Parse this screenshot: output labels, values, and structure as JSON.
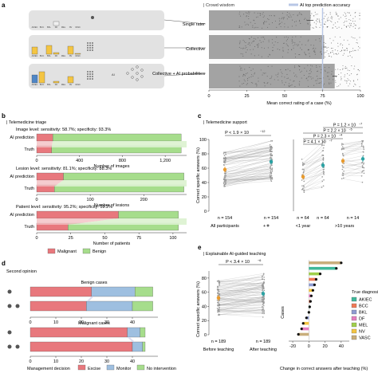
{
  "panel_letters": [
    "a",
    "b",
    "c",
    "d",
    "e"
  ],
  "panel_a": {
    "title": "| Crowd wisdom",
    "legend": "AI top prediction accuracy",
    "row_labels": [
      "Single rater",
      "Collective",
      "Collective + AI probabilities"
    ],
    "diagnosis_labels": [
      "AKIEC",
      "BCC",
      "BKL",
      "DF",
      "MEL",
      "NV",
      "VASC"
    ],
    "ai_text": "AI",
    "xlabel": "Mean correct rating of a case (%)"
  },
  "panel_b": {
    "title": "| Telemedicine triage",
    "row_labels": [
      "AI prediction",
      "Truth"
    ],
    "charts": [
      {
        "subtitle": "Image level: sensitivity: 58.7%; specificity: 93.3%",
        "xlabel": "Number of images",
        "ticks": [
          "0",
          "400",
          "800",
          "1,200"
        ]
      },
      {
        "subtitle": "Lesion level: sensitivity: 81.1%; specificity: 88.3%",
        "xlabel": "Number of lesions",
        "ticks": [
          "0",
          "100",
          "200"
        ]
      },
      {
        "subtitle": "Patient level: sensitivity: 95.2%; specificity: 59.2%",
        "xlabel": "Number of patients",
        "ticks": [
          "0",
          "25",
          "50",
          "75",
          "100"
        ]
      }
    ],
    "legend": [
      "Malignant",
      "Benign"
    ]
  },
  "panel_c": {
    "title": "| Telemedicine support",
    "ylabel": "Correct specific answers (%)",
    "left_p": "P < 1.9 × 10",
    "left_p_exp": "−12",
    "left_n": [
      "n = 154",
      "n = 154"
    ],
    "left_xlabel": "All participants",
    "right_p": [
      "P = 1.2 × 10",
      "P = 2.2 × 10",
      "P = 2.3 × 10",
      "P = 4.1 × 10"
    ],
    "right_p_exp": [
      "−7",
      "−5",
      "−4",
      "−7"
    ],
    "right_n": [
      "n = 64",
      "n = 64",
      "n = 14"
    ],
    "right_xlabels": [
      "<1 year",
      ">10 years"
    ]
  },
  "panel_d": {
    "title": "Second opinion",
    "subtitles": [
      "Benign cases",
      "Malignant cases"
    ],
    "legend_title": "Management decision",
    "legend": [
      "Excise",
      "Monitor",
      "No intervention"
    ]
  },
  "panel_e": {
    "title": "| Explainable AI-guided teaching",
    "p_text": "P < 3.4 × 10",
    "p_exp": "−6",
    "ylabel": "Correct specific answers (%)",
    "n_labels": [
      "n = 189",
      "n = 189"
    ],
    "xlabels": [
      "Before teaching",
      "After teaching"
    ],
    "right_ylabel": "Cases",
    "right_xlabel": "Change in correct answers after teaching (%)",
    "legend_title": "True diagnosis",
    "legend": [
      "AKIEC",
      "BCC",
      "BKL",
      "DF",
      "MEL",
      "NV",
      "VASC"
    ]
  },
  "colors": {
    "malignant": "#e8787d",
    "malignant_light": "#f3c1c3",
    "benign": "#a6dd8c",
    "benign_light": "#dcf2cf",
    "monitor": "#9ebfe0",
    "akiec": "#3fb89a",
    "bcc": "#f07a57",
    "bkl": "#8e9bd1",
    "df": "#e57fbf",
    "mel": "#9fcf4a",
    "nv": "#f4c542",
    "vasc": "#c9ae7c",
    "ai_line": "#b8c7e6",
    "orange": "#e99a2c",
    "teal": "#2ba3a4",
    "grey_bar": "#9a9a9a"
  },
  "chart_data": [
    {
      "type": "bar",
      "panel": "a",
      "categories": [
        "Single rater",
        "Collective",
        "Collective + AI probabilities"
      ],
      "values": [
        67,
        76,
        83
      ],
      "error": [
        2,
        1.5,
        1.5
      ],
      "ai_reference": 75,
      "xlim": [
        0,
        100
      ],
      "xticks": [
        0,
        25,
        50,
        75,
        100
      ],
      "xlabel": "Mean correct rating of a case (%)"
    },
    {
      "type": "bar",
      "panel": "b",
      "stacked": true,
      "levels": [
        {
          "name": "Image level",
          "xlim": [
            0,
            1400
          ],
          "ai_prediction": {
            "Malignant": 150,
            "Benign": 1200
          },
          "truth": {
            "Malignant": 140,
            "Benign": 1210
          }
        },
        {
          "name": "Lesion level",
          "xlim": [
            0,
            280
          ],
          "ai_prediction": {
            "Malignant": 50,
            "Benign": 225
          },
          "truth": {
            "Malignant": 33,
            "Benign": 242
          }
        },
        {
          "name": "Patient level",
          "xlim": [
            0,
            110
          ],
          "ai_prediction": {
            "Malignant": 60,
            "Benign": 44
          },
          "truth": {
            "Malignant": 23,
            "Benign": 81
          }
        }
      ]
    },
    {
      "type": "scatter",
      "panel": "c-left",
      "categories": [
        "All participants",
        "With AI"
      ],
      "means": [
        58,
        69
      ],
      "ylim": [
        0,
        100
      ],
      "yticks": [
        0,
        20,
        40,
        60,
        80,
        100
      ]
    },
    {
      "type": "scatter",
      "panel": "c-right",
      "categories": [
        "<1 year",
        "<1 year + AI",
        ">10 years",
        ">10 years + AI"
      ],
      "means": [
        48,
        64,
        70,
        73
      ],
      "ylim": [
        0,
        100
      ],
      "yticks": [
        0,
        20,
        40,
        60,
        80,
        100
      ]
    },
    {
      "type": "bar",
      "panel": "d",
      "stacked": true,
      "xlim": [
        0,
        50
      ],
      "xticks": [
        0,
        10,
        20,
        30,
        40
      ],
      "groups": [
        {
          "name": "Benign cases",
          "rows": [
            {
              "Excise": 24,
              "Monitor": 17,
              "No intervention": 7
            },
            {
              "Excise": 22,
              "Monitor": 18,
              "No intervention": 8
            }
          ]
        },
        {
          "name": "Malignant cases",
          "rows": [
            {
              "Excise": 38,
              "Monitor": 5,
              "No intervention": 2
            },
            {
              "Excise": 40,
              "Monitor": 4,
              "No intervention": 1
            }
          ]
        }
      ]
    },
    {
      "type": "scatter",
      "panel": "e-left",
      "categories": [
        "Before teaching",
        "After teaching"
      ],
      "means": [
        52,
        58
      ],
      "ylim": [
        0,
        100
      ],
      "yticks": [
        0,
        20,
        40,
        60,
        80
      ]
    },
    {
      "type": "bar",
      "panel": "e-right",
      "orientation": "horizontal",
      "xlim": [
        -25,
        50
      ],
      "xticks": [
        -20,
        0,
        20,
        40
      ],
      "xlabel": "Change in correct answers after teaching (%)",
      "cases": [
        {
          "diagnosis": "VASC",
          "value": 40
        },
        {
          "diagnosis": "AKIEC",
          "value": 34
        },
        {
          "diagnosis": "MEL",
          "value": 14
        },
        {
          "diagnosis": "BCC",
          "value": 9
        },
        {
          "diagnosis": "BKL",
          "value": 7
        },
        {
          "diagnosis": "NV",
          "value": 5
        },
        {
          "diagnosis": "DF",
          "value": 3
        },
        {
          "diagnosis": "BCC",
          "value": 2
        },
        {
          "diagnosis": "AKIEC",
          "value": 1
        },
        {
          "diagnosis": "MEL",
          "value": 0
        },
        {
          "diagnosis": "BKL",
          "value": -3
        },
        {
          "diagnosis": "NV",
          "value": -7
        },
        {
          "diagnosis": "DF",
          "value": -9
        },
        {
          "diagnosis": "VASC",
          "value": -13
        }
      ]
    }
  ]
}
